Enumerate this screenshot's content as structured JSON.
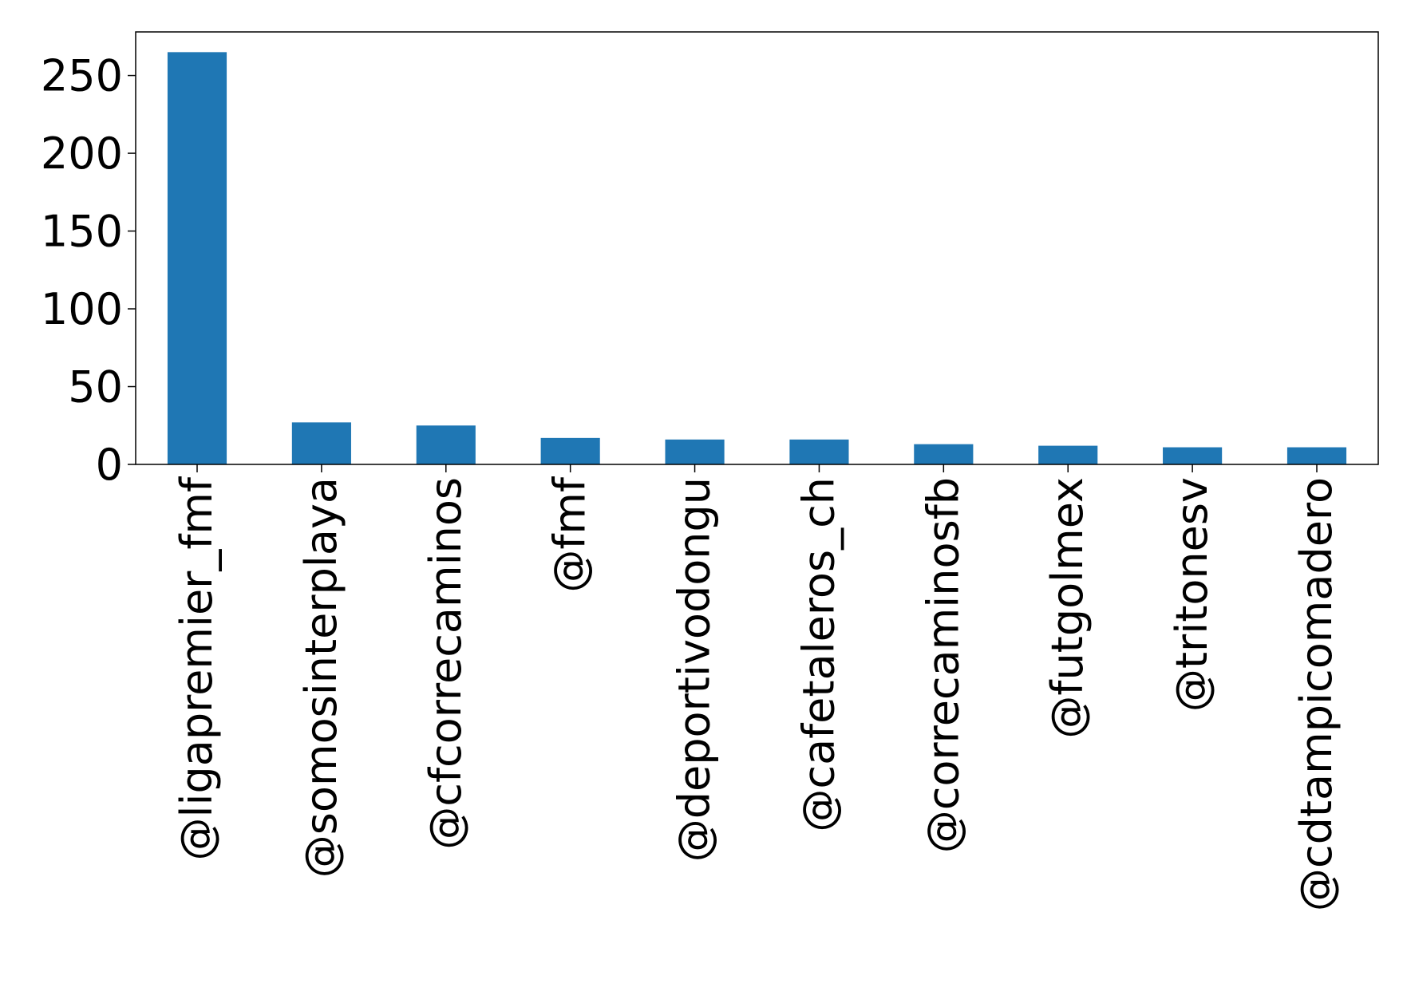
{
  "chart_data": {
    "type": "bar",
    "title": "",
    "xlabel": "",
    "ylabel": "",
    "categories": [
      "@ligapremier_fmf",
      "@somosinterplaya",
      "@cfcorrecaminos",
      "@fmf",
      "@deportivodongu",
      "@cafetaleros_ch",
      "@correcaminosfb",
      "@futgolmex",
      "@tritonesv",
      "@cdtampicomadero"
    ],
    "values": [
      265,
      27,
      25,
      17,
      16,
      16,
      13,
      12,
      11,
      11
    ],
    "ylim": [
      0,
      278
    ],
    "yticks": [
      0,
      50,
      100,
      150,
      200,
      250
    ],
    "grid": false,
    "legend": "none",
    "bar_color": "#1f77b4"
  }
}
